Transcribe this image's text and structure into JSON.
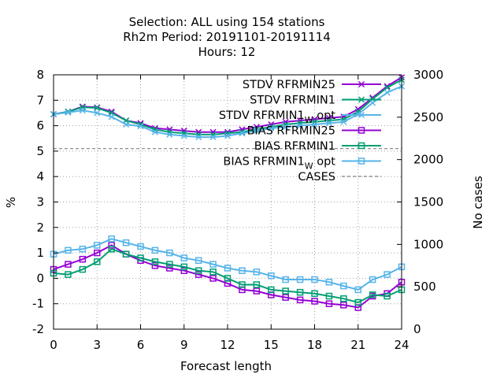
{
  "chart_data": {
    "type": "line",
    "title_lines": [
      "Selection: ALL using   154 stations",
      "Rh2m   Period: 20191101-20191114",
      "Hours:  12"
    ],
    "xlabel": "Forecast length",
    "ylabel": "%",
    "y2label": "No cases",
    "xlim": [
      0,
      24
    ],
    "ylim": [
      -2,
      8
    ],
    "y2lim": [
      0,
      3000
    ],
    "xticks": [
      0,
      3,
      6,
      9,
      12,
      15,
      18,
      21,
      24
    ],
    "yticks": [
      -2,
      -1,
      0,
      1,
      2,
      3,
      4,
      5,
      6,
      7,
      8
    ],
    "y2ticks": [
      0,
      500,
      1000,
      1500,
      2000,
      2500,
      3000
    ],
    "grid": true,
    "legend_position": "top-right",
    "x": [
      0,
      1,
      2,
      3,
      4,
      5,
      6,
      7,
      8,
      9,
      10,
      11,
      12,
      13,
      14,
      15,
      16,
      17,
      18,
      19,
      20,
      21,
      22,
      23,
      24
    ],
    "series": [
      {
        "name": "STDV RFRMIN25",
        "color": "#9400d3",
        "marker": "x",
        "axis": "y",
        "values": [
          6.45,
          6.55,
          6.75,
          6.72,
          6.55,
          6.2,
          6.1,
          5.9,
          5.85,
          5.8,
          5.75,
          5.75,
          5.75,
          5.85,
          5.95,
          6.05,
          6.15,
          6.2,
          6.25,
          6.3,
          6.35,
          6.65,
          7.1,
          7.55,
          7.9
        ]
      },
      {
        "name": "STDV RFRMIN1",
        "color": "#009e73",
        "marker": "x",
        "axis": "y",
        "values": [
          6.45,
          6.55,
          6.72,
          6.7,
          6.5,
          6.2,
          6.05,
          5.85,
          5.75,
          5.7,
          5.65,
          5.65,
          5.7,
          5.75,
          5.85,
          5.95,
          6.05,
          6.1,
          6.15,
          6.2,
          6.25,
          6.55,
          7.05,
          7.5,
          7.8
        ]
      },
      {
        "name": "STDV RFRMIN1",
        "name_subscript": "W",
        "name_suffix": "opt",
        "color": "#56b4e9",
        "marker": "x",
        "axis": "y",
        "values": [
          6.45,
          6.52,
          6.6,
          6.5,
          6.35,
          6.05,
          5.98,
          5.75,
          5.65,
          5.6,
          5.55,
          5.55,
          5.6,
          5.7,
          5.8,
          5.9,
          5.95,
          6.0,
          6.05,
          6.1,
          6.15,
          6.45,
          6.9,
          7.3,
          7.55
        ]
      },
      {
        "name": "BIAS RFRMIN25",
        "color": "#9400d3",
        "marker": "square",
        "axis": "y",
        "values": [
          0.35,
          0.55,
          0.75,
          1.0,
          1.3,
          0.95,
          0.7,
          0.5,
          0.4,
          0.3,
          0.15,
          0.0,
          -0.2,
          -0.45,
          -0.5,
          -0.65,
          -0.75,
          -0.85,
          -0.9,
          -1.0,
          -1.05,
          -1.15,
          -0.7,
          -0.6,
          -0.15
        ]
      },
      {
        "name": "BIAS RFRMIN1",
        "color": "#009e73",
        "marker": "square",
        "axis": "y",
        "values": [
          0.2,
          0.15,
          0.35,
          0.65,
          1.15,
          0.95,
          0.8,
          0.65,
          0.55,
          0.45,
          0.3,
          0.25,
          0.0,
          -0.25,
          -0.25,
          -0.45,
          -0.5,
          -0.55,
          -0.6,
          -0.7,
          -0.8,
          -0.95,
          -0.65,
          -0.7,
          -0.45
        ]
      },
      {
        "name": "BIAS RFRMIN1",
        "name_subscript": "W",
        "name_suffix": "opt",
        "color": "#56b4e9",
        "marker": "square",
        "axis": "y",
        "values": [
          0.95,
          1.1,
          1.15,
          1.3,
          1.55,
          1.4,
          1.25,
          1.1,
          1.0,
          0.8,
          0.7,
          0.55,
          0.4,
          0.3,
          0.25,
          0.1,
          -0.05,
          -0.05,
          -0.05,
          -0.15,
          -0.3,
          -0.45,
          -0.05,
          0.15,
          0.45
        ]
      },
      {
        "name": "CASES",
        "color": "#808080",
        "marker": "none",
        "dashed": true,
        "axis": "y2",
        "values": [
          2130,
          2130,
          2130,
          2130,
          2130,
          2130,
          2130,
          2130,
          2130,
          2130,
          2130,
          2130,
          2130,
          2130,
          2130,
          2130,
          2130,
          2130,
          2130,
          2130,
          2130,
          2130,
          2130,
          2130,
          2130
        ]
      }
    ]
  }
}
